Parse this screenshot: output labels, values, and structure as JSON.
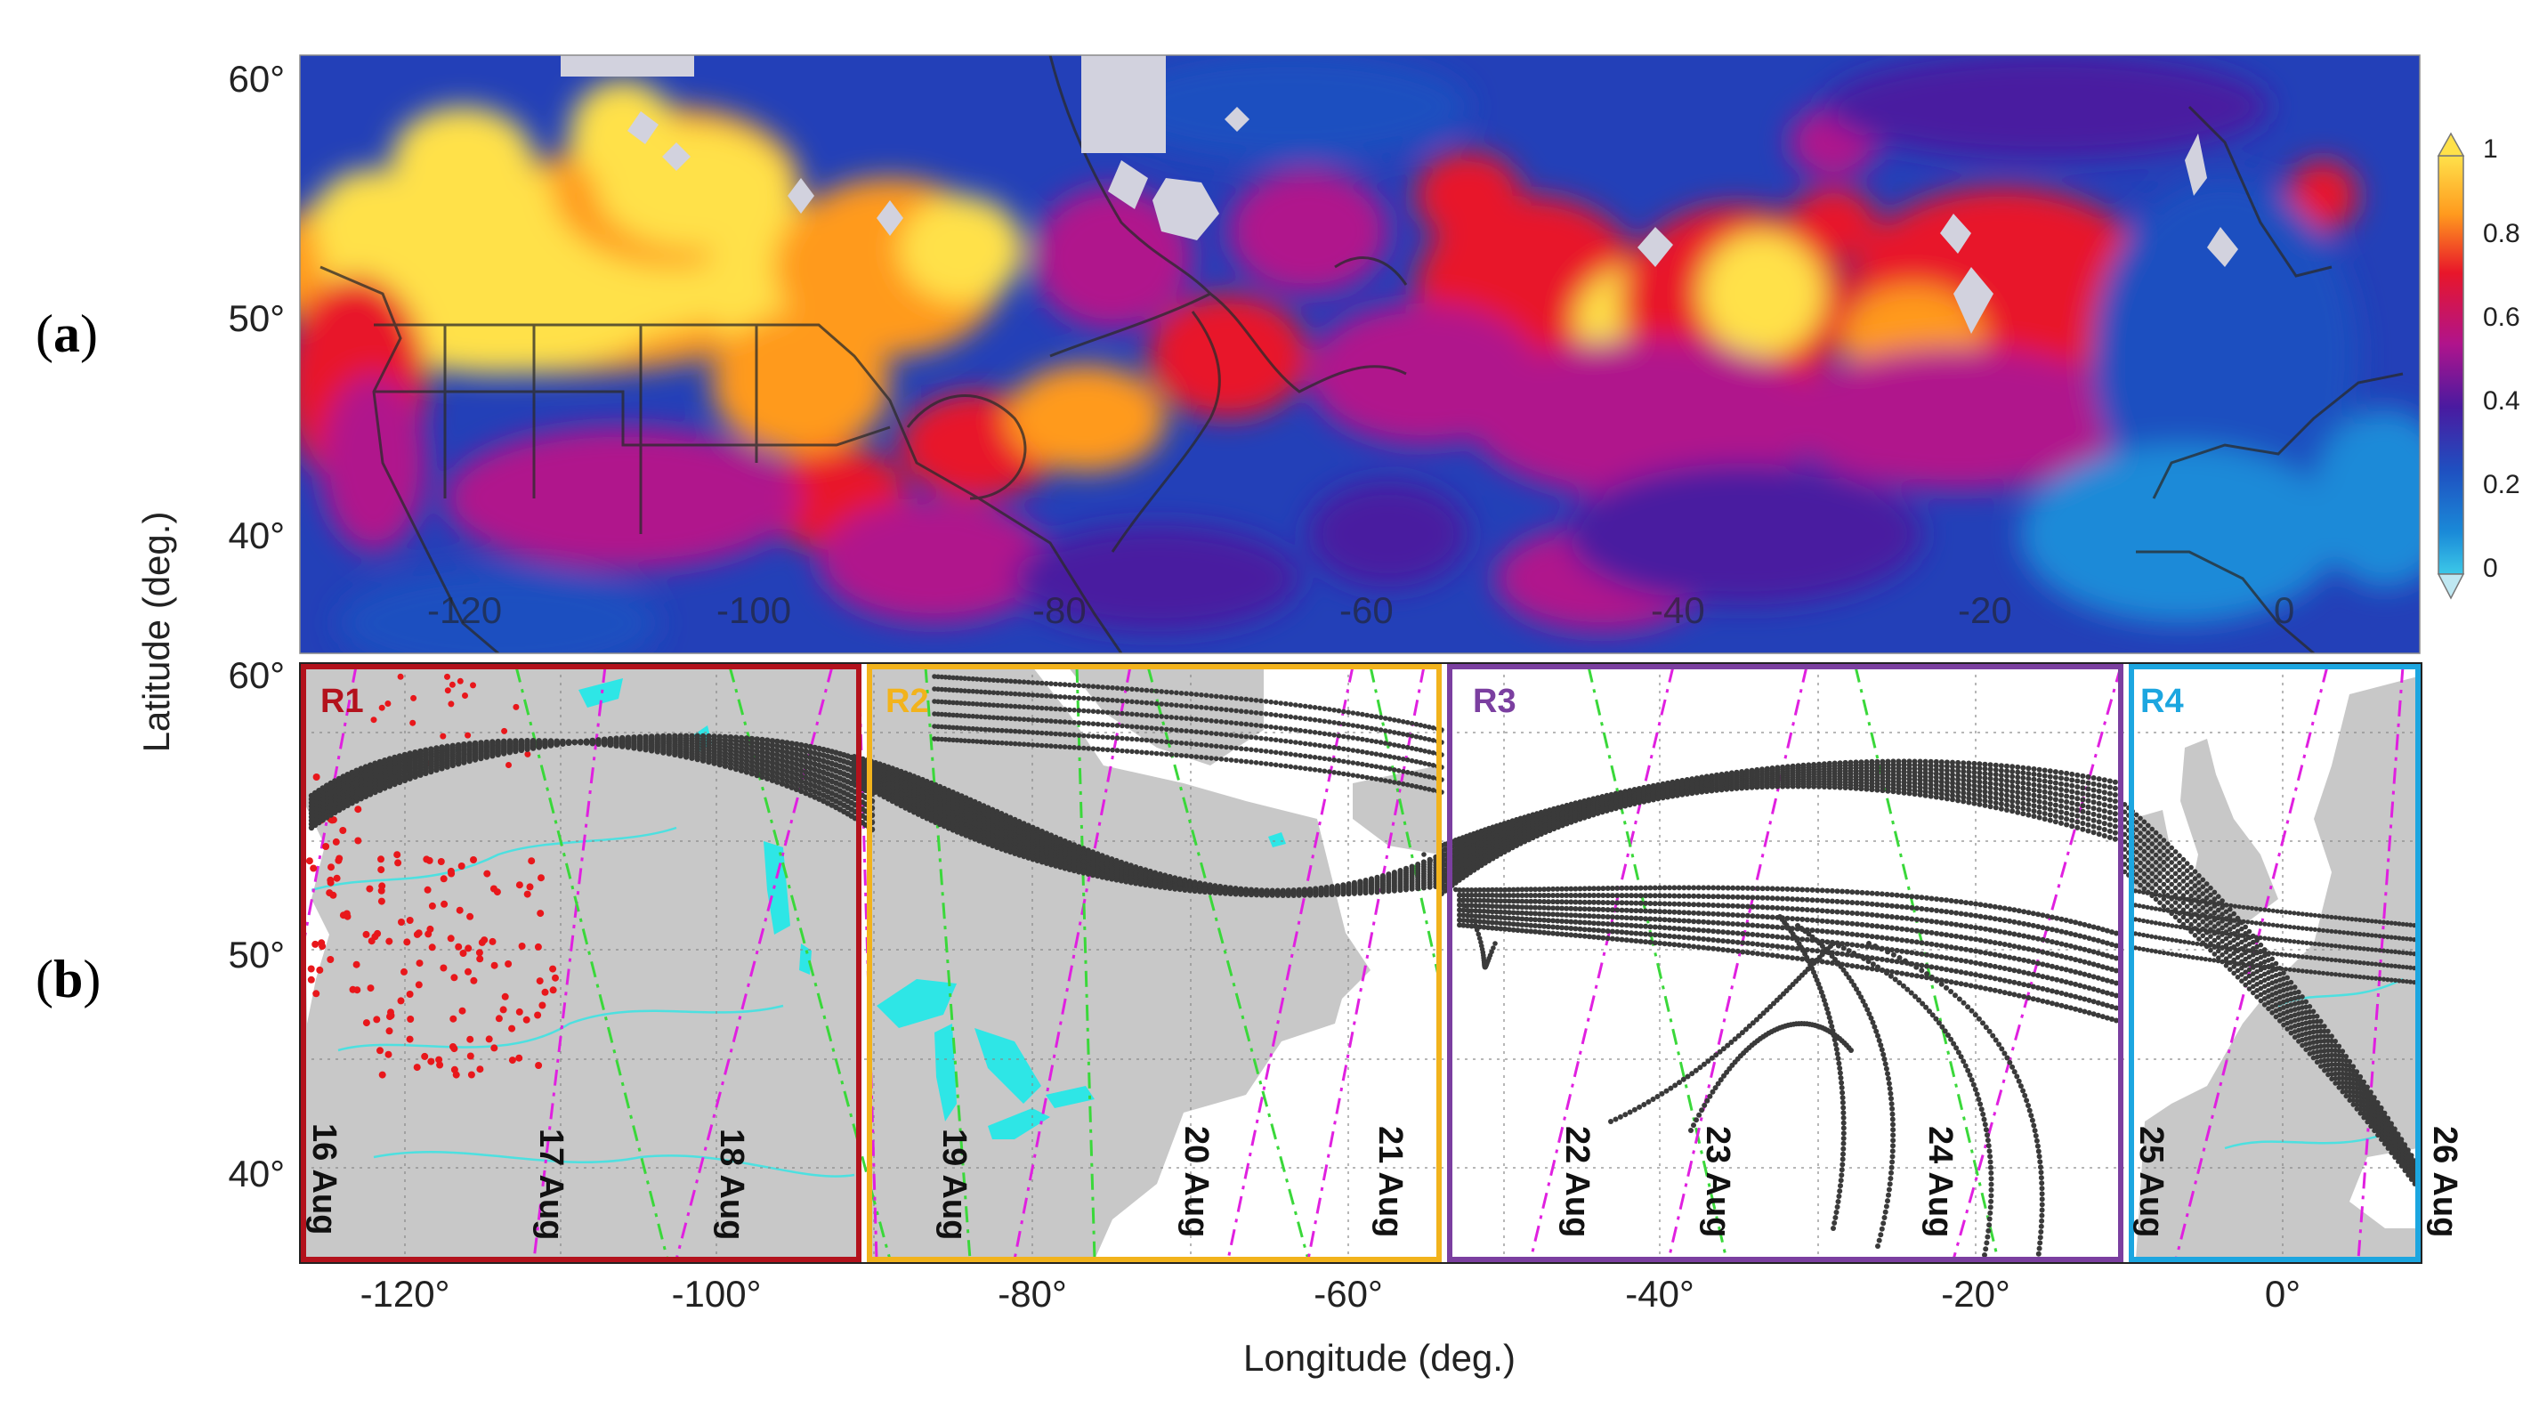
{
  "panels": {
    "a": {
      "letter": "a"
    },
    "b": {
      "letter": "b"
    }
  },
  "axes": {
    "ylabel": "Latitude (deg.)",
    "xlabel": "Longitude (deg.)",
    "lat_ticks": [
      "60°",
      "50°",
      "40°"
    ],
    "lon_ticks_b": [
      "-120°",
      "-100°",
      "-80°",
      "-60°",
      "-40°",
      "-20°",
      "0°"
    ],
    "lon_ticks_a_inside": [
      "-120",
      "-100",
      "-80",
      "-60",
      "-40",
      "-20",
      "0"
    ]
  },
  "colorbar": {
    "ticks": [
      "1",
      "0.8",
      "0.6",
      "0.4",
      "0.2",
      "0"
    ],
    "colors": [
      "#ffe14a",
      "#ff9a1e",
      "#e8162a",
      "#b0148c",
      "#4a1aa0",
      "#1f4fc0",
      "#1a8ad8",
      "#3cc8e8"
    ]
  },
  "regions": [
    {
      "label": "R1",
      "color": "#b3121c"
    },
    {
      "label": "R2",
      "color": "#f2b31c"
    },
    {
      "label": "R3",
      "color": "#7b3fa0"
    },
    {
      "label": "R4",
      "color": "#1ca6e0"
    }
  ],
  "dates": [
    "16 Aug",
    "17 Aug",
    "18 Aug",
    "19 Aug",
    "20 Aug",
    "21 Aug",
    "22 Aug",
    "23 Aug",
    "24 Aug",
    "25 Aug",
    "26 Aug"
  ],
  "style": {
    "land": "#c8c8c8",
    "ocean": "#ffffff",
    "trajectory": "#333333",
    "fire": "#e8171b",
    "lakes": "#2ee6e6",
    "magenta_track": "#e020e0",
    "green_track": "#3ad83a"
  }
}
